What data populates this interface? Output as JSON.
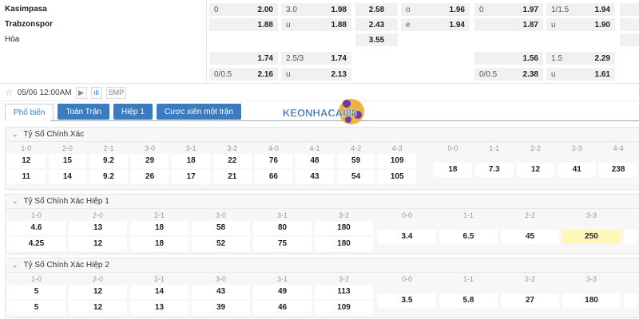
{
  "match": {
    "home": "Kasimpasa",
    "away": "Trabzonspor",
    "draw": "Hòa"
  },
  "odds_rows": [
    [
      [
        "0",
        "2.00"
      ],
      [
        "3.0",
        "1.98"
      ],
      [
        "",
        "2.58"
      ],
      [
        "o",
        "1.96"
      ],
      [
        "0",
        "1.97"
      ],
      [
        "1/1.5",
        "1.94"
      ],
      [
        "",
        ""
      ]
    ],
    [
      [
        "",
        "1.88"
      ],
      [
        "u",
        "1.88"
      ],
      [
        "",
        "2.43"
      ],
      [
        "e",
        "1.94"
      ],
      [
        "",
        "1.87"
      ],
      [
        "u",
        "1.90"
      ],
      [
        "",
        ""
      ]
    ],
    [
      null,
      null,
      [
        "",
        "3.55"
      ],
      null,
      null,
      null,
      [
        "",
        ""
      ]
    ],
    [
      [
        "",
        "1.74"
      ],
      [
        "2.5/3",
        "1.74"
      ],
      null,
      null,
      [
        "",
        "1.56"
      ],
      [
        "1.5",
        "2.29"
      ],
      null
    ],
    [
      [
        "0/0.5",
        "2.16"
      ],
      [
        "u",
        "2.13"
      ],
      null,
      null,
      [
        "0/0.5",
        "2.38"
      ],
      [
        "u",
        "1.61"
      ],
      null
    ]
  ],
  "toolbar": {
    "datetime": "05/06 12:00AM",
    "play_icon": "▶",
    "stats_icon": "ılı",
    "smp": "SMP"
  },
  "tabs": [
    "Phổ biến",
    "Toàn Trận",
    "Hiệp 1",
    "Cược xiên một trận"
  ],
  "active_tab": 0,
  "logo_text": "KEONHACAI88",
  "highlight_color": "#fdf8b8",
  "sections": [
    {
      "title": "Tỷ Số Chính Xác",
      "scores": [
        [
          "1-0",
          "12",
          "11"
        ],
        [
          "2-0",
          "15",
          "14"
        ],
        [
          "2-1",
          "9.2",
          "9.2"
        ],
        [
          "3-0",
          "29",
          "26"
        ],
        [
          "3-1",
          "18",
          "17"
        ],
        [
          "3-2",
          "22",
          "21"
        ],
        [
          "4-0",
          "76",
          "66"
        ],
        [
          "4-1",
          "48",
          "43"
        ],
        [
          "4-2",
          "59",
          "54"
        ],
        [
          "4-3",
          "109",
          "105"
        ]
      ],
      "draws": [
        [
          "0-0",
          "18"
        ],
        [
          "1-1",
          "7.3"
        ],
        [
          "2-2",
          "12"
        ],
        [
          "3-3",
          "41"
        ],
        [
          "4-4",
          "238"
        ]
      ]
    },
    {
      "title": "Tỷ Số Chính Xác Hiệp 1",
      "scores": [
        [
          "1-0",
          "4.6",
          "4.25"
        ],
        [
          "2-0",
          "13",
          "12"
        ],
        [
          "2-1",
          "18",
          "18"
        ],
        [
          "3-0",
          "58",
          "52"
        ],
        [
          "3-1",
          "80",
          "75"
        ],
        [
          "3-2",
          "180",
          "180"
        ]
      ],
      "draws": [
        [
          "0-0",
          "3.4"
        ],
        [
          "1-1",
          "6.5"
        ],
        [
          "2-2",
          "45"
        ],
        [
          "3-3",
          "250",
          true
        ],
        [
          "",
          ""
        ]
      ]
    },
    {
      "title": "Tỷ Số Chính Xác Hiệp 2",
      "scores": [
        [
          "1-0",
          "5",
          "5"
        ],
        [
          "2-0",
          "12",
          "12"
        ],
        [
          "2-1",
          "14",
          "13"
        ],
        [
          "3-0",
          "43",
          "39"
        ],
        [
          "3-1",
          "49",
          "46"
        ],
        [
          "3-2",
          "113",
          "109"
        ]
      ],
      "draws": [
        [
          "0-0",
          "3.5"
        ],
        [
          "1-1",
          "5.8"
        ],
        [
          "2-2",
          "27"
        ],
        [
          "3-3",
          "180"
        ],
        [
          "",
          ""
        ]
      ]
    }
  ]
}
